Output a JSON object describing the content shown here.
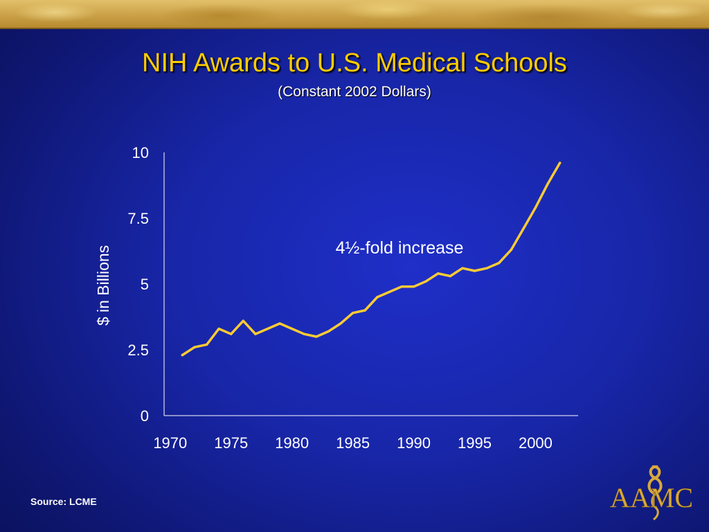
{
  "slide": {
    "title": "NIH Awards to U.S. Medical Schools",
    "subtitle": "(Constant 2002 Dollars)",
    "source": "Source: LCME",
    "logo_text": "AAMC"
  },
  "colors": {
    "title": "#ffcc00",
    "line": "#ffcc33",
    "axis_text": "#ffffff",
    "logo": "#d8a93a"
  },
  "chart_data": {
    "type": "line",
    "title": "",
    "xlabel": "",
    "ylabel": "$ in Billions",
    "xlim": [
      1969.5,
      2003.5
    ],
    "ylim": [
      0,
      10
    ],
    "x_ticks": [
      "1970",
      "1975",
      "1980",
      "1985",
      "1990",
      "1995",
      "2000"
    ],
    "y_ticks": [
      "0",
      "2.5",
      "5",
      "7.5",
      "10"
    ],
    "grid": false,
    "annotation": "4½-fold increase",
    "series": [
      {
        "x": [
          1971,
          1972,
          1973,
          1974,
          1975,
          1976,
          1977,
          1978,
          1979,
          1980,
          1981,
          1982,
          1983,
          1984,
          1985,
          1986,
          1987,
          1988,
          1989,
          1990,
          1991,
          1992,
          1993,
          1994,
          1995,
          1996,
          1997,
          1998,
          1999,
          2000,
          2001,
          2002
        ],
        "values": [
          2.3,
          2.6,
          2.7,
          3.3,
          3.1,
          3.6,
          3.1,
          3.3,
          3.5,
          3.3,
          3.1,
          3.0,
          3.2,
          3.5,
          3.9,
          4.0,
          4.5,
          4.7,
          4.9,
          4.9,
          5.1,
          5.4,
          5.3,
          5.6,
          5.5,
          5.6,
          5.8,
          6.3,
          7.1,
          7.9,
          8.8,
          9.6
        ]
      }
    ]
  }
}
